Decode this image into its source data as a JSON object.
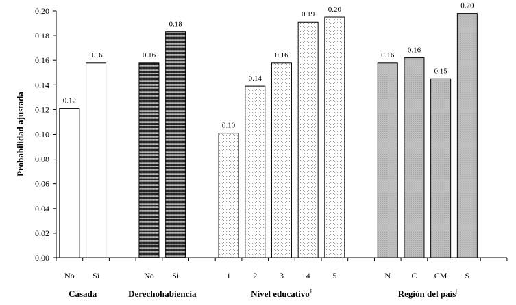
{
  "chart_data": {
    "type": "bar",
    "ylabel": "Probabilidad ajustada",
    "ylim": [
      0,
      0.2
    ],
    "ytick_step": 0.02,
    "grid": false,
    "legend": "none",
    "groups": [
      {
        "name": "Casada",
        "pattern": "plain",
        "categories": [
          "No",
          "Si"
        ],
        "values": [
          0.121,
          0.158
        ],
        "labels": [
          "0.12",
          "0.16"
        ]
      },
      {
        "name": "Derechohabiencia",
        "pattern": "wave-dark",
        "categories": [
          "No",
          "Si"
        ],
        "values": [
          0.158,
          0.183
        ],
        "labels": [
          "0.16",
          "0.18"
        ]
      },
      {
        "name": "Nivel educativo",
        "marker": "‡",
        "pattern": "dots-light",
        "categories": [
          "1",
          "2",
          "3",
          "4",
          "5"
        ],
        "values": [
          0.101,
          0.139,
          0.158,
          0.191,
          0.195
        ],
        "labels": [
          "0.10",
          "0.14",
          "0.16",
          "0.19",
          "0.20"
        ]
      },
      {
        "name": "Región del país",
        "marker": "|",
        "pattern": "gray",
        "categories": [
          "N",
          "C",
          "CM",
          "S"
        ],
        "values": [
          0.158,
          0.162,
          0.145,
          0.198
        ],
        "labels": [
          "0.16",
          "0.16",
          "0.15",
          "0.20"
        ]
      }
    ]
  }
}
